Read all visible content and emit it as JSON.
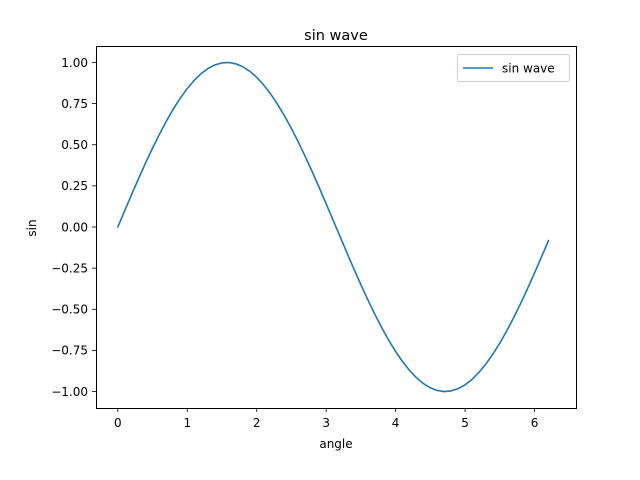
{
  "chart_data": {
    "type": "line",
    "title": "sin wave",
    "xlabel": "angle",
    "ylabel": "sin",
    "xlim": [
      -0.314,
      6.597
    ],
    "ylim": [
      -1.1,
      1.1
    ],
    "xticks": [
      0,
      1,
      2,
      3,
      4,
      5,
      6
    ],
    "xtick_labels": [
      "0",
      "1",
      "2",
      "3",
      "4",
      "5",
      "6"
    ],
    "yticks": [
      1.0,
      0.75,
      0.5,
      0.25,
      0.0,
      -0.25,
      -0.5,
      -0.75,
      -1.0
    ],
    "ytick_labels": [
      "1.00",
      "0.75",
      "0.50",
      "0.25",
      "0.00",
      "−0.25",
      "−0.50",
      "−0.75",
      "−1.00"
    ],
    "grid": false,
    "legend_position": "upper right",
    "series": [
      {
        "name": "sin wave",
        "color": "#1f77b4",
        "function": "sin",
        "x_start": 0,
        "x_end": 6.283,
        "x_step": 0.1
      }
    ]
  }
}
